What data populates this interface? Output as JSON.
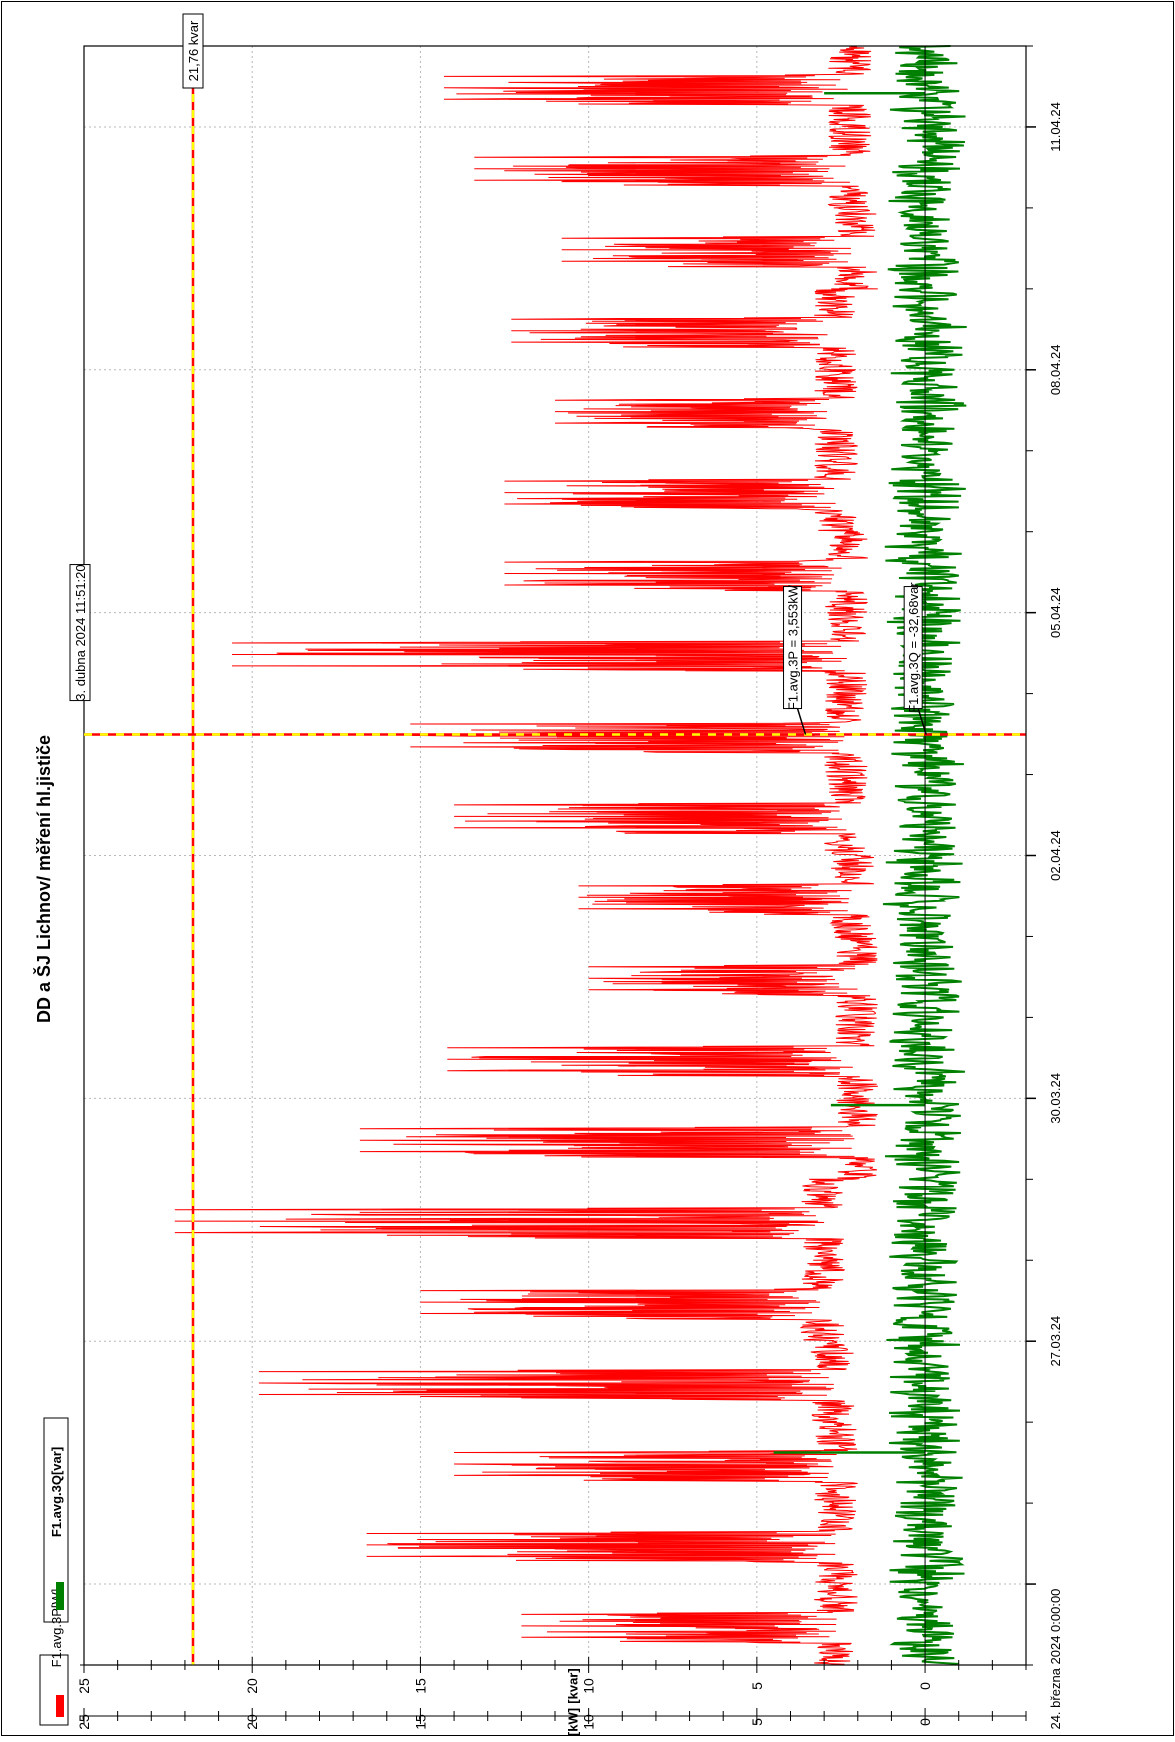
{
  "chart_data": {
    "type": "line",
    "title": "DD a ŠJ Lichnov/ měření hl.jističe",
    "orientation": "rotated 90° clockwise (time runs bottom-to-top, values left-to-right)",
    "x_axis": {
      "kind": "time",
      "start_label": "24. března 2024 0:00:00",
      "tick_labels": [
        "11.04.24",
        "08.04.24",
        "05.04.24",
        "02.04.24",
        "30.03.24",
        "27.03.24"
      ],
      "range_days": [
        "2024-03-23",
        "2024-04-11"
      ]
    },
    "y_axes": [
      {
        "label": "[kvar]",
        "ticks": [
          "25",
          "20",
          "15",
          "10",
          "5",
          "0"
        ],
        "range": [
          -3,
          25
        ]
      },
      {
        "label": "[kW]",
        "ticks": [
          "25",
          "20",
          "15",
          "10",
          "5",
          "0"
        ],
        "range": [
          -3,
          25
        ]
      }
    ],
    "grid": true,
    "legend": {
      "placement": "top-left",
      "entries": [
        {
          "label": "F1.avg.3P[W]",
          "color": "#ff0000"
        },
        {
          "label": "F1.avg.3Q[var]",
          "color": "#008000"
        }
      ]
    },
    "cursor_lines": [
      {
        "label": "21,76 kvar",
        "value": 21.76,
        "color": "#ffff00"
      },
      {
        "label": "3. dubna 2024 11:51:20",
        "time": "2024-04-03T11:51:20",
        "color": "#ffff00"
      }
    ],
    "annotations": [
      {
        "label": "F1.avg.3P = 3,553kW",
        "value": 3.553,
        "series": "F1.avg.3P[W]"
      },
      {
        "label": "F1.avg.3Q = -32,68var",
        "value": -0.03268,
        "series": "F1.avg.3Q[var]"
      }
    ],
    "series": [
      {
        "name": "F1.avg.3P[W]",
        "color": "#ff0000",
        "unit": "kW",
        "daily_profile": [
          {
            "date": "2024-03-23",
            "min": 1.6,
            "max": 12.0
          },
          {
            "date": "2024-03-24",
            "min": 1.6,
            "max": 16.6
          },
          {
            "date": "2024-03-25",
            "min": 1.6,
            "max": 14.0
          },
          {
            "date": "2024-03-26",
            "min": 1.7,
            "max": 19.8
          },
          {
            "date": "2024-03-27",
            "min": 2.0,
            "max": 15.0
          },
          {
            "date": "2024-03-28",
            "min": 2.0,
            "max": 22.3
          },
          {
            "date": "2024-03-29",
            "min": 1.0,
            "max": 16.8
          },
          {
            "date": "2024-03-30",
            "min": 1.0,
            "max": 14.2
          },
          {
            "date": "2024-03-31",
            "min": 1.0,
            "max": 10.0
          },
          {
            "date": "2024-04-01",
            "min": 1.1,
            "max": 10.3
          },
          {
            "date": "2024-04-02",
            "min": 1.3,
            "max": 14.0
          },
          {
            "date": "2024-04-03",
            "min": 1.3,
            "max": 15.3
          },
          {
            "date": "2024-04-04",
            "min": 1.3,
            "max": 20.6
          },
          {
            "date": "2024-04-05",
            "min": 1.3,
            "max": 12.5
          },
          {
            "date": "2024-04-06",
            "min": 1.6,
            "max": 12.5
          },
          {
            "date": "2024-04-07",
            "min": 1.6,
            "max": 11.0
          },
          {
            "date": "2024-04-08",
            "min": 1.6,
            "max": 12.3
          },
          {
            "date": "2024-04-09",
            "min": 1.0,
            "max": 10.8
          },
          {
            "date": "2024-04-10",
            "min": 1.2,
            "max": 13.4
          },
          {
            "date": "2024-04-11",
            "min": 1.2,
            "max": 14.3
          }
        ]
      },
      {
        "name": "F1.avg.3Q[var]",
        "color": "#008000",
        "unit": "kvar",
        "typical_range": [
          -1.3,
          1.3
        ],
        "notable_excursions": [
          {
            "date": "2024-03-25T15:00",
            "value": 4.5
          },
          {
            "date": "2024-03-29T22:00",
            "value": 2.8
          },
          {
            "date": "2024-04-11T10:00",
            "value": 3.0
          }
        ]
      }
    ]
  }
}
